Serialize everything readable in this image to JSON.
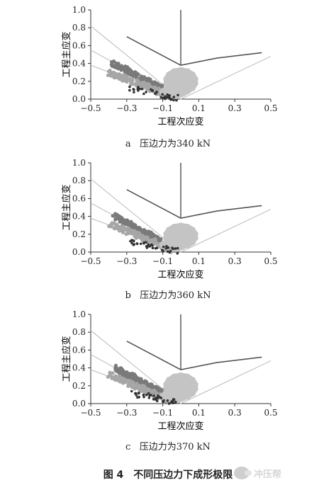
{
  "panels": [
    {
      "caption_letter": "a",
      "caption_text": "压边力为340 kN"
    },
    {
      "caption_letter": "b",
      "caption_text": "压边力为360 kN"
    },
    {
      "caption_letter": "c",
      "caption_text": "压边力为370 kN"
    }
  ],
  "axes": {
    "xlabel": "工程次应变",
    "ylabel": "工程主应变",
    "xticks": [
      "−0.5",
      "−0.3",
      "−0.1",
      "0.1",
      "0.3",
      "0.5"
    ],
    "yticks": [
      "0.0",
      "0.2",
      "0.4",
      "0.6",
      "0.8",
      "1.0"
    ]
  },
  "figure_title": "图 4　不同压边力下成形极限",
  "watermark_text": "冲压帮",
  "colors": {
    "flc": "#555555",
    "safety": "#bbbbbb",
    "cloud_dark": "#7a7a7a",
    "cloud_mid": "#a6a6a6",
    "cloud_light": "#c4c4c4",
    "cloud_black": "#333333"
  },
  "chart_data": [
    {
      "type": "scatter",
      "xlim": [
        -0.5,
        0.5
      ],
      "ylim": [
        0.0,
        1.0
      ],
      "flc": {
        "x": [
          -0.3,
          0.0,
          0.2,
          0.45
        ],
        "y": [
          0.7,
          0.38,
          0.46,
          0.52
        ]
      },
      "safety_lines": [
        {
          "x": [
            -0.5,
            0.0
          ],
          "y": [
            0.82,
            0.0
          ]
        },
        {
          "x": [
            -0.5,
            0.0
          ],
          "y": [
            0.55,
            0.0
          ]
        },
        {
          "x": [
            0.0,
            0.5
          ],
          "y": [
            0.0,
            0.48
          ]
        },
        {
          "x": [
            -0.5,
            0.0
          ],
          "y": [
            0.38,
            0.0
          ]
        }
      ],
      "clouds": [
        {
          "kind": "dark",
          "x": [
            -0.38,
            -0.1
          ],
          "y": [
            0.4,
            0.12
          ]
        },
        {
          "kind": "mid",
          "x": [
            -0.4,
            -0.05
          ],
          "y": [
            0.3,
            0.03
          ]
        },
        {
          "kind": "light_blob",
          "center": [
            0.0,
            0.2
          ],
          "radius": [
            0.1,
            0.16
          ]
        },
        {
          "kind": "black",
          "x": [
            -0.28,
            -0.02
          ],
          "y": [
            0.12,
            0.01
          ]
        }
      ]
    },
    {
      "type": "scatter",
      "xlim": [
        -0.5,
        0.5
      ],
      "ylim": [
        0.0,
        1.0
      ],
      "flc": {
        "x": [
          -0.3,
          0.0,
          0.2,
          0.45
        ],
        "y": [
          0.7,
          0.38,
          0.46,
          0.52
        ]
      },
      "safety_lines": [
        {
          "x": [
            -0.5,
            0.0
          ],
          "y": [
            0.82,
            0.0
          ]
        },
        {
          "x": [
            -0.5,
            0.0
          ],
          "y": [
            0.55,
            0.0
          ]
        },
        {
          "x": [
            0.0,
            0.5
          ],
          "y": [
            0.0,
            0.48
          ]
        },
        {
          "x": [
            -0.5,
            0.0
          ],
          "y": [
            0.38,
            0.0
          ]
        }
      ],
      "clouds": [
        {
          "kind": "dark",
          "x": [
            -0.37,
            -0.1
          ],
          "y": [
            0.4,
            0.12
          ]
        },
        {
          "kind": "mid",
          "x": [
            -0.4,
            -0.05
          ],
          "y": [
            0.32,
            0.03
          ]
        },
        {
          "kind": "light_blob",
          "center": [
            0.0,
            0.18
          ],
          "radius": [
            0.1,
            0.15
          ]
        },
        {
          "kind": "black",
          "x": [
            -0.28,
            -0.02
          ],
          "y": [
            0.12,
            0.01
          ]
        }
      ]
    },
    {
      "type": "scatter",
      "xlim": [
        -0.5,
        0.5
      ],
      "ylim": [
        0.0,
        1.0
      ],
      "flc": {
        "x": [
          -0.3,
          0.0,
          0.2,
          0.45
        ],
        "y": [
          0.7,
          0.38,
          0.46,
          0.52
        ]
      },
      "safety_lines": [
        {
          "x": [
            -0.5,
            0.0
          ],
          "y": [
            0.82,
            0.0
          ]
        },
        {
          "x": [
            -0.5,
            0.0
          ],
          "y": [
            0.55,
            0.0
          ]
        },
        {
          "x": [
            0.0,
            0.5
          ],
          "y": [
            0.0,
            0.48
          ]
        },
        {
          "x": [
            -0.5,
            0.0
          ],
          "y": [
            0.38,
            0.0
          ]
        }
      ],
      "clouds": [
        {
          "kind": "dark",
          "x": [
            -0.37,
            -0.1
          ],
          "y": [
            0.4,
            0.12
          ]
        },
        {
          "kind": "mid",
          "x": [
            -0.4,
            -0.05
          ],
          "y": [
            0.32,
            0.03
          ]
        },
        {
          "kind": "light_blob",
          "center": [
            0.0,
            0.19
          ],
          "radius": [
            0.1,
            0.16
          ]
        },
        {
          "kind": "black",
          "x": [
            -0.28,
            -0.02
          ],
          "y": [
            0.12,
            0.01
          ]
        }
      ]
    }
  ]
}
